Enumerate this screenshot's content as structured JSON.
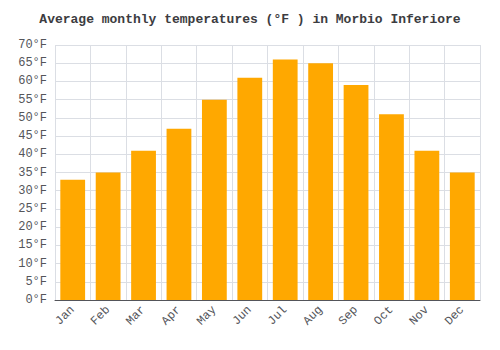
{
  "chart_data": {
    "type": "bar",
    "title": "Average monthly temperatures (°F ) in Morbio Inferiore",
    "categories": [
      "Jan",
      "Feb",
      "Mar",
      "Apr",
      "May",
      "Jun",
      "Jul",
      "Aug",
      "Sep",
      "Oct",
      "Nov",
      "Dec"
    ],
    "values": [
      33,
      35,
      41,
      47,
      55,
      61,
      66,
      65,
      59,
      51,
      41,
      35
    ],
    "color": "#FFA800",
    "ylim": [
      0,
      70
    ],
    "yticks": [
      {
        "value": 0,
        "label": "0°F"
      },
      {
        "value": 5,
        "label": "5°F"
      },
      {
        "value": 10,
        "label": "10°F"
      },
      {
        "value": 15,
        "label": "15°F"
      },
      {
        "value": 20,
        "label": "20°F"
      },
      {
        "value": 25,
        "label": "25°F"
      },
      {
        "value": 30,
        "label": "30°F"
      },
      {
        "value": 35,
        "label": "35°F"
      },
      {
        "value": 40,
        "label": "40°F"
      },
      {
        "value": 45,
        "label": "45°F"
      },
      {
        "value": 50,
        "label": "50°F"
      },
      {
        "value": 55,
        "label": "55°F"
      },
      {
        "value": 60,
        "label": "60°F"
      },
      {
        "value": 65,
        "label": "65°F"
      },
      {
        "value": 70,
        "label": "70°F"
      }
    ],
    "grid": true
  }
}
